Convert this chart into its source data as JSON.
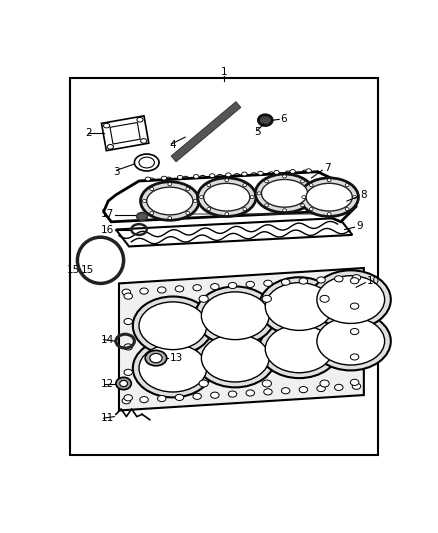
{
  "bg_color": "#ffffff",
  "border_color": "#000000",
  "line_color": "#000000",
  "lw_main": 1.5,
  "lw_thin": 0.8,
  "fontsize": 7.5
}
